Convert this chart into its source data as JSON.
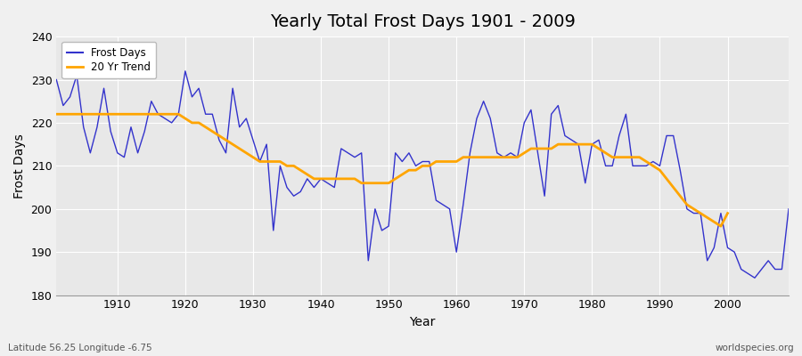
{
  "title": "Yearly Total Frost Days 1901 - 2009",
  "xlabel": "Year",
  "ylabel": "Frost Days",
  "legend_labels": [
    "Frost Days",
    "20 Yr Trend"
  ],
  "line_color": "#3333cc",
  "trend_color": "#FFA500",
  "fig_bg_color": "#f0f0f0",
  "plot_bg_color": "#e8e8e8",
  "ylim": [
    180,
    240
  ],
  "xlim": [
    1901,
    2009
  ],
  "yticks": [
    180,
    190,
    200,
    210,
    220,
    230,
    240
  ],
  "xticks": [
    1910,
    1920,
    1930,
    1940,
    1950,
    1960,
    1970,
    1980,
    1990,
    2000
  ],
  "subtitle_left": "Latitude 56.25 Longitude -6.75",
  "subtitle_right": "worldspecies.org",
  "years": [
    1901,
    1902,
    1903,
    1904,
    1905,
    1906,
    1907,
    1908,
    1909,
    1910,
    1911,
    1912,
    1913,
    1914,
    1915,
    1916,
    1917,
    1918,
    1919,
    1920,
    1921,
    1922,
    1923,
    1924,
    1925,
    1926,
    1927,
    1928,
    1929,
    1930,
    1931,
    1932,
    1933,
    1934,
    1935,
    1936,
    1937,
    1938,
    1939,
    1940,
    1941,
    1942,
    1943,
    1944,
    1945,
    1946,
    1947,
    1948,
    1949,
    1950,
    1951,
    1952,
    1953,
    1954,
    1955,
    1956,
    1957,
    1958,
    1959,
    1960,
    1961,
    1962,
    1963,
    1964,
    1965,
    1966,
    1967,
    1968,
    1969,
    1970,
    1971,
    1972,
    1973,
    1974,
    1975,
    1976,
    1977,
    1978,
    1979,
    1980,
    1981,
    1982,
    1983,
    1984,
    1985,
    1986,
    1987,
    1988,
    1989,
    1990,
    1991,
    1992,
    1993,
    1994,
    1995,
    1996,
    1997,
    1998,
    1999,
    2000,
    2001,
    2002,
    2003,
    2004,
    2005,
    2006,
    2007,
    2008,
    2009
  ],
  "frost_days": [
    230,
    224,
    226,
    231,
    219,
    213,
    219,
    228,
    218,
    213,
    212,
    219,
    213,
    218,
    225,
    222,
    221,
    220,
    222,
    232,
    226,
    228,
    222,
    222,
    216,
    213,
    228,
    219,
    221,
    216,
    211,
    215,
    195,
    210,
    205,
    203,
    204,
    207,
    205,
    207,
    206,
    205,
    214,
    213,
    212,
    213,
    188,
    200,
    195,
    196,
    213,
    211,
    213,
    210,
    211,
    211,
    202,
    201,
    200,
    190,
    201,
    213,
    221,
    225,
    221,
    213,
    212,
    213,
    212,
    220,
    223,
    213,
    203,
    222,
    224,
    217,
    216,
    215,
    206,
    215,
    216,
    210,
    210,
    217,
    222,
    210,
    210,
    210,
    211,
    210,
    217,
    217,
    209,
    200,
    199,
    199,
    188,
    191,
    199,
    191,
    190,
    186,
    185,
    184,
    186,
    188,
    186,
    186,
    200
  ],
  "trend_years": [
    1901,
    1902,
    1903,
    1904,
    1905,
    1906,
    1907,
    1908,
    1909,
    1910,
    1911,
    1912,
    1913,
    1914,
    1915,
    1916,
    1917,
    1918,
    1919,
    1920,
    1921,
    1922,
    1923,
    1924,
    1925,
    1926,
    1927,
    1928,
    1929,
    1930,
    1931,
    1932,
    1933,
    1934,
    1935,
    1936,
    1937,
    1938,
    1939,
    1940,
    1941,
    1942,
    1943,
    1944,
    1945,
    1946,
    1947,
    1948,
    1949,
    1950,
    1951,
    1952,
    1953,
    1954,
    1955,
    1956,
    1957,
    1958,
    1959,
    1960,
    1961,
    1962,
    1963,
    1964,
    1965,
    1966,
    1967,
    1968,
    1969,
    1970,
    1971,
    1972,
    1973,
    1974,
    1975,
    1976,
    1977,
    1978,
    1979,
    1980,
    1981,
    1982,
    1983,
    1984,
    1985,
    1986,
    1987,
    1988,
    1989,
    1990,
    1991,
    1992,
    1993,
    1994,
    1995,
    1996,
    1997,
    1998,
    1999,
    2000
  ],
  "trend_vals": [
    222,
    222,
    222,
    222,
    222,
    222,
    222,
    222,
    222,
    222,
    222,
    222,
    222,
    222,
    222,
    222,
    222,
    222,
    222,
    221,
    220,
    220,
    219,
    218,
    217,
    216,
    215,
    214,
    213,
    212,
    211,
    211,
    211,
    211,
    210,
    210,
    209,
    208,
    207,
    207,
    207,
    207,
    207,
    207,
    207,
    206,
    206,
    206,
    206,
    206,
    207,
    208,
    209,
    209,
    210,
    210,
    211,
    211,
    211,
    211,
    212,
    212,
    212,
    212,
    212,
    212,
    212,
    212,
    212,
    213,
    214,
    214,
    214,
    214,
    215,
    215,
    215,
    215,
    215,
    215,
    214,
    213,
    212,
    212,
    212,
    212,
    212,
    211,
    210,
    209,
    207,
    205,
    203,
    201,
    200,
    199,
    198,
    197,
    196,
    199
  ]
}
